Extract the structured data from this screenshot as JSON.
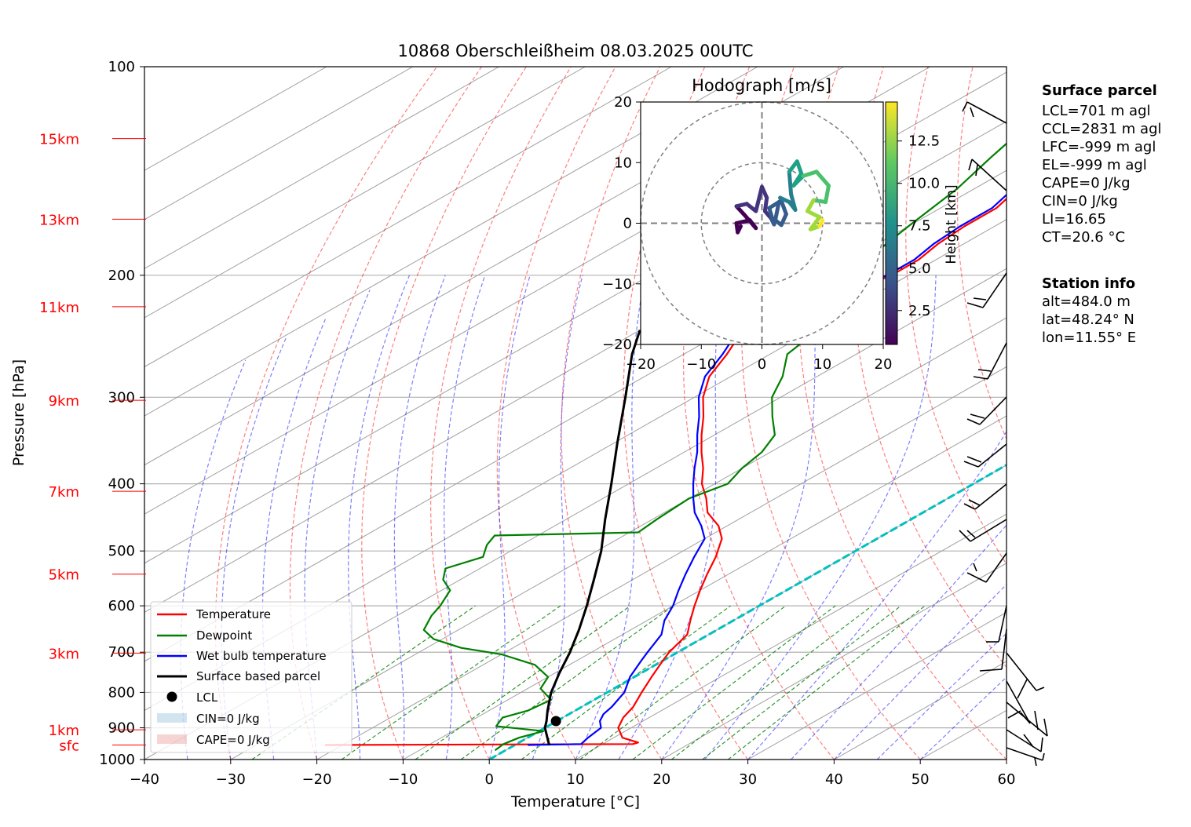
{
  "chart_data": [
    {
      "type": "skew-t",
      "title": "10868 Oberschleißheim 08.03.2025 00UTC",
      "xlabel": "Temperature [°C]",
      "ylabel": "Pressure [hPa]",
      "x_ticks": [
        -40,
        -30,
        -20,
        -10,
        0,
        10,
        20,
        30,
        40,
        50,
        60
      ],
      "y_ticks": [
        100,
        200,
        300,
        400,
        500,
        600,
        700,
        800,
        900,
        1000
      ],
      "xlim": [
        -40,
        60
      ],
      "ylim": [
        1000,
        100
      ],
      "height_labels": [
        {
          "label": "15km",
          "p": 127
        },
        {
          "label": "13km",
          "p": 166
        },
        {
          "label": "11km",
          "p": 222
        },
        {
          "label": "9km",
          "p": 303
        },
        {
          "label": "7km",
          "p": 410
        },
        {
          "label": "5km",
          "p": 540
        },
        {
          "label": "3km",
          "p": 702
        },
        {
          "label": "1km",
          "p": 906
        },
        {
          "label": "sfc",
          "p": 953
        }
      ],
      "grid": true,
      "series": [
        {
          "name": "Temperature",
          "color": "#ff0000",
          "points": [
            [
              953,
              -22
            ],
            [
              950,
              13.5
            ],
            [
              945,
              13.8
            ],
            [
              930,
              11.0
            ],
            [
              900,
              8.5
            ],
            [
              870,
              7.0
            ],
            [
              840,
              6.0
            ],
            [
              800,
              4.0
            ],
            [
              760,
              2.0
            ],
            [
              720,
              0.0
            ],
            [
              700,
              -1.0
            ],
            [
              660,
              -2.5
            ],
            [
              630,
              -5.0
            ],
            [
              600,
              -7.5
            ],
            [
              570,
              -10.0
            ],
            [
              540,
              -12.5
            ],
            [
              510,
              -15.0
            ],
            [
              480,
              -18.0
            ],
            [
              460,
              -21.0
            ],
            [
              440,
              -25.0
            ],
            [
              420,
              -28.0
            ],
            [
              400,
              -31.5
            ],
            [
              380,
              -34.5
            ],
            [
              360,
              -38.0
            ],
            [
              340,
              -41.5
            ],
            [
              320,
              -45.0
            ],
            [
              300,
              -49.0
            ],
            [
              280,
              -52.5
            ],
            [
              260,
              -55.0
            ],
            [
              250,
              -56.5
            ],
            [
              240,
              -56.8
            ],
            [
              230,
              -56.5
            ],
            [
              225,
              -55.8
            ],
            [
              220,
              -54.5
            ],
            [
              210,
              -53.0
            ],
            [
              200,
              -52.0
            ],
            [
              190,
              -52.0
            ],
            [
              180,
              -53.0
            ],
            [
              170,
              -53.5
            ],
            [
              160,
              -53.5
            ],
            [
              150,
              -55.0
            ],
            [
              140,
              -56.0
            ],
            [
              130,
              -58.0
            ],
            [
              125,
              -58.0
            ]
          ]
        },
        {
          "name": "Dewpoint",
          "color": "#008000",
          "points": [
            [
              970,
              -1.2
            ],
            [
              950,
              -1.5
            ],
            [
              930,
              -1.0
            ],
            [
              910,
              0.5
            ],
            [
              895,
              -6.0
            ],
            [
              870,
              -7.0
            ],
            [
              850,
              -5.5
            ],
            [
              820,
              -5.0
            ],
            [
              790,
              -8.5
            ],
            [
              760,
              -10.0
            ],
            [
              730,
              -14.0
            ],
            [
              705,
              -20.0
            ],
            [
              690,
              -26.0
            ],
            [
              670,
              -31.0
            ],
            [
              650,
              -34.0
            ],
            [
              620,
              -36.0
            ],
            [
              600,
              -37.0
            ],
            [
              570,
              -39.0
            ],
            [
              550,
              -42.0
            ],
            [
              530,
              -44.0
            ],
            [
              510,
              -42.0
            ],
            [
              490,
              -44.0
            ],
            [
              475,
              -45.0
            ],
            [
              470,
              -29.0
            ],
            [
              450,
              -29.5
            ],
            [
              420,
              -30.0
            ],
            [
              400,
              -28.5
            ],
            [
              380,
              -30.0
            ],
            [
              360,
              -31.0
            ],
            [
              340,
              -33.0
            ],
            [
              320,
              -37.0
            ],
            [
              300,
              -41.0
            ],
            [
              280,
              -44.0
            ],
            [
              260,
              -48.0
            ],
            [
              245,
              -49.0
            ],
            [
              230,
              -49.0
            ],
            [
              225,
              -54.0
            ],
            [
              215,
              -58.0
            ],
            [
              205,
              -55.0
            ],
            [
              195,
              -58.0
            ],
            [
              185,
              -58.5
            ],
            [
              170,
              -60.0
            ],
            [
              150,
              -62.0
            ],
            [
              135,
              -64.5
            ],
            [
              126,
              -66.0
            ]
          ]
        },
        {
          "name": "Wet bulb temperature",
          "color": "#0000ff",
          "points": [
            [
              953,
              1.5
            ],
            [
              950,
              7.5
            ],
            [
              930,
              7.0
            ],
            [
              900,
              6.5
            ],
            [
              880,
              5.0
            ],
            [
              860,
              4.0
            ],
            [
              840,
              3.5
            ],
            [
              800,
              2.0
            ],
            [
              760,
              -0.5
            ],
            [
              720,
              -2.5
            ],
            [
              700,
              -3.5
            ],
            [
              660,
              -5.5
            ],
            [
              630,
              -8.0
            ],
            [
              600,
              -10.0
            ],
            [
              570,
              -12.5
            ],
            [
              540,
              -15.0
            ],
            [
              510,
              -17.5
            ],
            [
              480,
              -20.0
            ],
            [
              460,
              -23.0
            ],
            [
              440,
              -26.5
            ],
            [
              420,
              -29.5
            ],
            [
              400,
              -32.5
            ],
            [
              380,
              -35.5
            ],
            [
              360,
              -38.5
            ],
            [
              340,
              -42.0
            ],
            [
              320,
              -45.5
            ],
            [
              300,
              -49.5
            ],
            [
              280,
              -53.0
            ],
            [
              260,
              -55.5
            ],
            [
              250,
              -57.0
            ],
            [
              240,
              -57.2
            ],
            [
              230,
              -57.0
            ],
            [
              225,
              -56.2
            ],
            [
              220,
              -55.0
            ],
            [
              210,
              -53.5
            ],
            [
              200,
              -52.5
            ],
            [
              190,
              -52.5
            ],
            [
              180,
              -53.5
            ],
            [
              170,
              -54.0
            ],
            [
              160,
              -54.0
            ],
            [
              150,
              -55.5
            ],
            [
              140,
              -56.5
            ],
            [
              130,
              -58.5
            ],
            [
              125,
              -58.5
            ]
          ]
        },
        {
          "name": "Surface based parcel",
          "color": "#000000",
          "points": [
            [
              953,
              4.0
            ],
            [
              900,
              0.0
            ],
            [
              880,
              -1.2
            ],
            [
              850,
              -3.2
            ],
            [
              800,
              -6.5
            ],
            [
              750,
              -9.5
            ],
            [
              700,
              -12.5
            ],
            [
              650,
              -16.0
            ],
            [
              600,
              -20.0
            ],
            [
              550,
              -24.5
            ],
            [
              500,
              -29.5
            ],
            [
              450,
              -35.5
            ],
            [
              400,
              -42.0
            ],
            [
              350,
              -49.5
            ],
            [
              300,
              -58.0
            ],
            [
              260,
              -66.0
            ],
            [
              240,
              -70.0
            ]
          ]
        }
      ],
      "lcl": {
        "name": "LCL",
        "p": 880,
        "t": -0.1
      },
      "cin_label": "CIN=0 J/kg",
      "cape_label": "CAPE=0 J/kg",
      "legend_position": "lower-left",
      "wind_barbs_position": "right",
      "reference_lines": {
        "isotherm_zero_color": "#00c0c0",
        "dry_adiabat_color": "#ff0000",
        "moist_adiabat_color": "#0000ff",
        "mixing_ratio_color": "#008000"
      }
    },
    {
      "type": "hodograph",
      "title": "Hodograph [m/s]",
      "xlim": [
        -20,
        20
      ],
      "ylim": [
        -20,
        20
      ],
      "x_ticks": [
        -20,
        -10,
        0,
        10,
        20
      ],
      "y_ticks": [
        -20,
        -10,
        0,
        10,
        20
      ],
      "rings": [
        10,
        20
      ],
      "colorbar": {
        "label": "Height [km]",
        "ticks": [
          2.5,
          5.0,
          7.5,
          10.0,
          12.5
        ],
        "range": [
          0.5,
          14.8
        ],
        "colormap": "viridis"
      },
      "series": [
        {
          "points": [
            [
              -3.5,
              -0.5,
              0.5
            ],
            [
              -4.0,
              -1.5,
              0.7
            ],
            [
              -4.2,
              0.0,
              0.9
            ],
            [
              -2.0,
              0.5,
              1.1
            ],
            [
              -1.0,
              -0.8,
              1.3
            ],
            [
              -3.0,
              1.5,
              1.5
            ],
            [
              -4.2,
              2.8,
              1.8
            ],
            [
              -2.5,
              3.2,
              2.1
            ],
            [
              -1.0,
              2.0,
              2.4
            ],
            [
              0.0,
              6.0,
              2.7
            ],
            [
              0.8,
              4.2,
              3.0
            ],
            [
              0.5,
              2.0,
              3.3
            ],
            [
              1.5,
              0.8,
              3.6
            ],
            [
              2.0,
              -0.2,
              3.9
            ],
            [
              1.2,
              2.5,
              4.2
            ],
            [
              2.8,
              3.5,
              4.5
            ],
            [
              2.2,
              0.5,
              4.8
            ],
            [
              3.2,
              -0.3,
              5.1
            ],
            [
              4.0,
              1.5,
              5.5
            ],
            [
              3.0,
              4.2,
              6.0
            ],
            [
              4.5,
              3.5,
              6.5
            ],
            [
              5.5,
              2.2,
              7.0
            ],
            [
              4.8,
              4.8,
              7.5
            ],
            [
              4.5,
              8.5,
              8.0
            ],
            [
              5.8,
              10.2,
              8.5
            ],
            [
              6.5,
              8.2,
              9.0
            ],
            [
              5.2,
              6.2,
              9.5
            ],
            [
              6.8,
              7.8,
              10.0
            ],
            [
              9.0,
              8.5,
              10.5
            ],
            [
              11.0,
              6.2,
              11.0
            ],
            [
              10.5,
              3.5,
              11.5
            ],
            [
              8.5,
              3.8,
              12.0
            ],
            [
              7.5,
              2.0,
              12.5
            ],
            [
              9.5,
              1.0,
              13.0
            ],
            [
              8.0,
              -1.0,
              13.5
            ],
            [
              9.5,
              -0.5,
              14.0
            ],
            [
              10.0,
              0.5,
              14.5
            ]
          ]
        }
      ]
    }
  ],
  "surface_parcel": {
    "heading": "Surface parcel",
    "lines": [
      "LCL=701 m agl",
      "CCL=2831 m agl",
      "LFC=-999 m agl",
      "EL=-999 m agl",
      "CAPE=0 J/kg",
      "CIN=0 J/kg",
      "LI=16.65",
      "CT=20.6 °C"
    ]
  },
  "station_info": {
    "heading": "Station info",
    "lines": [
      "alt=484.0 m",
      "lat=48.24° N",
      "lon=11.55° E"
    ]
  }
}
